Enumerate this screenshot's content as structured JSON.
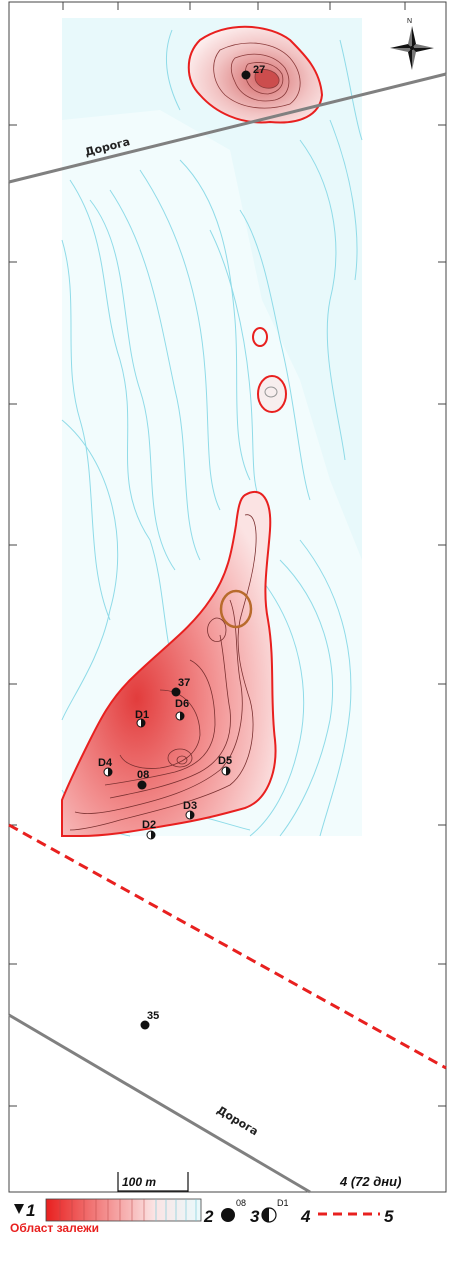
{
  "map": {
    "roads": [
      {
        "label": "Дорога"
      },
      {
        "label": "Дорога"
      }
    ],
    "wells": [
      {
        "id": "27",
        "type": "full"
      },
      {
        "id": "37",
        "type": "full"
      },
      {
        "id": "D1",
        "type": "half"
      },
      {
        "id": "D6",
        "type": "half"
      },
      {
        "id": "D4",
        "type": "half"
      },
      {
        "id": "08",
        "type": "full"
      },
      {
        "id": "D5",
        "type": "half"
      },
      {
        "id": "D3",
        "type": "half"
      },
      {
        "id": "D2",
        "type": "half"
      },
      {
        "id": "35",
        "type": "full"
      }
    ],
    "north_label": "N",
    "scale_label": "100 m",
    "period_label": "4 (72 дни)",
    "colors": {
      "deposit": "#e8201f",
      "contour_low": "#8fdbe8",
      "boundary": "#e8201f",
      "road": "#808080",
      "background_model": "#e6f8fa"
    }
  },
  "legend": {
    "items": [
      {
        "num": "1",
        "label": "Област залежи"
      },
      {
        "num": "2",
        "sample": "08"
      },
      {
        "num": "3",
        "sample": "D1"
      },
      {
        "num": "4"
      },
      {
        "num": "5"
      }
    ]
  }
}
